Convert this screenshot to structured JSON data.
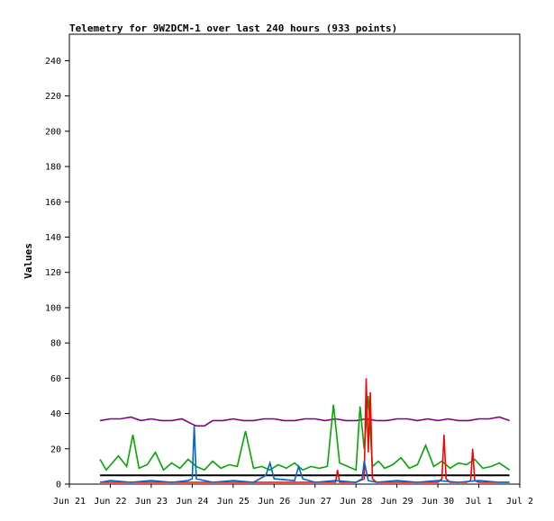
{
  "chart_data": {
    "type": "line",
    "title": "Telemetry for 9W2DCM-1 over last 240 hours (933 points)",
    "xlabel": "",
    "ylabel": "Values",
    "ylim": [
      0,
      255
    ],
    "yticks": [
      0,
      20,
      40,
      60,
      80,
      100,
      120,
      140,
      160,
      180,
      200,
      220,
      240
    ],
    "xlim": [
      0,
      11
    ],
    "xticks": [
      {
        "label": "Jun 21",
        "pos": 0
      },
      {
        "label": "Jun 22",
        "pos": 1
      },
      {
        "label": "Jun 23",
        "pos": 2
      },
      {
        "label": "Jun 24",
        "pos": 3
      },
      {
        "label": "Jun 25",
        "pos": 4
      },
      {
        "label": "Jun 26",
        "pos": 5
      },
      {
        "label": "Jun 27",
        "pos": 6
      },
      {
        "label": "Jun 28",
        "pos": 7
      },
      {
        "label": "Jun 29",
        "pos": 8
      },
      {
        "label": "Jun 30",
        "pos": 9
      },
      {
        "label": "Jul 1",
        "pos": 10
      },
      {
        "label": "Jul 2",
        "pos": 11
      }
    ],
    "grid": false,
    "series": [
      {
        "color": "#000000",
        "x": [
          0.75,
          10.75
        ],
        "y": [
          5,
          5
        ]
      },
      {
        "color": "#800080",
        "x": [
          0.75,
          1.0,
          1.25,
          1.5,
          1.75,
          2.0,
          2.25,
          2.5,
          2.75,
          3.0,
          3.1,
          3.3,
          3.5,
          3.75,
          4.0,
          4.25,
          4.5,
          4.75,
          5.0,
          5.25,
          5.5,
          5.75,
          6.0,
          6.25,
          6.5,
          6.75,
          7.0,
          7.25,
          7.5,
          7.75,
          8.0,
          8.25,
          8.5,
          8.75,
          9.0,
          9.25,
          9.5,
          9.75,
          10.0,
          10.25,
          10.5,
          10.75
        ],
        "y": [
          36,
          37,
          37,
          38,
          36,
          37,
          36,
          36,
          37,
          34,
          33,
          33,
          36,
          36,
          37,
          36,
          36,
          37,
          37,
          36,
          36,
          37,
          37,
          36,
          37,
          36,
          36,
          37,
          36,
          36,
          37,
          37,
          36,
          37,
          36,
          37,
          36,
          36,
          37,
          37,
          38,
          36
        ]
      },
      {
        "color": "#00a800",
        "x": [
          0.75,
          0.9,
          1.05,
          1.2,
          1.4,
          1.55,
          1.7,
          1.9,
          2.1,
          2.3,
          2.5,
          2.7,
          2.9,
          3.1,
          3.3,
          3.5,
          3.7,
          3.9,
          4.1,
          4.3,
          4.5,
          4.7,
          4.9,
          5.1,
          5.3,
          5.5,
          5.7,
          5.9,
          6.1,
          6.3,
          6.45,
          6.6,
          6.8,
          7.0,
          7.1,
          7.2,
          7.3,
          7.4,
          7.55,
          7.7,
          7.9,
          8.1,
          8.3,
          8.5,
          8.7,
          8.9,
          9.1,
          9.3,
          9.5,
          9.7,
          9.9,
          10.1,
          10.3,
          10.5,
          10.75
        ],
        "y": [
          14,
          8,
          12,
          16,
          10,
          28,
          9,
          11,
          18,
          8,
          12,
          9,
          14,
          10,
          8,
          13,
          9,
          11,
          10,
          30,
          9,
          10,
          8,
          11,
          9,
          12,
          8,
          10,
          9,
          10,
          45,
          12,
          10,
          8,
          44,
          20,
          50,
          10,
          13,
          9,
          11,
          15,
          9,
          11,
          22,
          10,
          13,
          9,
          12,
          11,
          14,
          9,
          10,
          12,
          8
        ]
      },
      {
        "color": "#ff0000",
        "x": [
          0.75,
          2.0,
          3.0,
          4.0,
          5.0,
          6.0,
          6.5,
          6.55,
          6.6,
          7.0,
          7.2,
          7.25,
          7.3,
          7.35,
          7.4,
          7.5,
          8.0,
          8.5,
          9.0,
          9.1,
          9.15,
          9.2,
          9.3,
          9.7,
          9.8,
          9.85,
          9.9,
          10.0,
          10.75
        ],
        "y": [
          1,
          1,
          1,
          1,
          1,
          1,
          1,
          8,
          1,
          1,
          3,
          60,
          18,
          52,
          3,
          1,
          1,
          1,
          1,
          3,
          28,
          3,
          1,
          1,
          2,
          20,
          2,
          1,
          1
        ]
      },
      {
        "color": "#0066cc",
        "x": [
          0.75,
          1.0,
          1.5,
          2.0,
          2.5,
          2.9,
          3.0,
          3.05,
          3.1,
          3.5,
          4.0,
          4.5,
          4.8,
          4.9,
          5.0,
          5.5,
          5.6,
          5.7,
          6.0,
          6.5,
          7.0,
          7.15,
          7.2,
          7.3,
          7.5,
          8.0,
          8.5,
          9.0,
          9.5,
          10.0,
          10.5,
          10.75
        ],
        "y": [
          1,
          2,
          1,
          2,
          1,
          2,
          3,
          33,
          3,
          1,
          2,
          1,
          5,
          12,
          3,
          2,
          10,
          3,
          1,
          2,
          1,
          3,
          13,
          2,
          1,
          2,
          1,
          2,
          1,
          2,
          1,
          1
        ]
      }
    ]
  }
}
